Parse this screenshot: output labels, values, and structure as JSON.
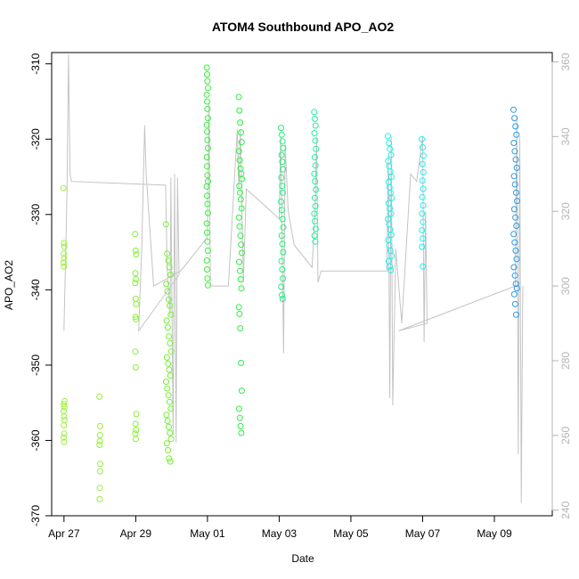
{
  "chart_data": {
    "type": "scatter",
    "title": "ATOM4 Southbound APO_AO2",
    "xlabel": "Date",
    "ylabel": "APO_AO2",
    "xlim": [
      "2016-04-26T15:45",
      "2016-05-10T14:45"
    ],
    "ylim": [
      -370,
      -308.5
    ],
    "y2lim": [
      238.5,
      362.5
    ],
    "x_ticks": [
      {
        "date": "2016-04-27",
        "label": "Apr 27"
      },
      {
        "date": "2016-04-29",
        "label": "Apr 29"
      },
      {
        "date": "2016-05-01",
        "label": "May 01"
      },
      {
        "date": "2016-05-03",
        "label": "May 03"
      },
      {
        "date": "2016-05-05",
        "label": "May 05"
      },
      {
        "date": "2016-05-07",
        "label": "May 07"
      },
      {
        "date": "2016-05-09",
        "label": "May 09"
      }
    ],
    "y_ticks": [
      -370,
      -360,
      -350,
      -340,
      -330,
      -320,
      -310
    ],
    "y2_ticks": [
      240,
      260,
      280,
      300,
      320,
      340,
      360
    ],
    "grid": false,
    "point_clusters": [
      {
        "t": "2016-04-27T00:00",
        "spread_h": 0.6,
        "color": "#9cf03c",
        "y": [
          -326.5,
          -333.8,
          -334.3,
          -335.2,
          -335.8,
          -336.4,
          -336.9,
          -354.8,
          -355.2,
          -355.6,
          -356.1,
          -356.8,
          -357.3,
          -358.0,
          -359.1,
          -359.6,
          -360.2
        ]
      },
      {
        "t": "2016-04-28T00:00",
        "spread_h": 0.6,
        "color": "#94f038",
        "y": [
          -354.2,
          -358.1,
          -359.3,
          -360.1,
          -360.6,
          -363.1,
          -364.1,
          -366.3,
          -367.8
        ]
      },
      {
        "t": "2016-04-29T00:00",
        "spread_h": 0.8,
        "color": "#86f034",
        "y": [
          -332.6,
          -334.8,
          -335.3,
          -337.8,
          -338.6,
          -339.1,
          -341.2,
          -341.9,
          -343.6,
          -343.9,
          -348.2,
          -350.3,
          -356.5,
          -357.8,
          -358.6,
          -359.1,
          -359.8
        ]
      },
      {
        "t": "2016-04-29T22:00",
        "spread_h": 3.5,
        "color": "#72f032",
        "y": [
          -331.3,
          -335.2,
          -336.1,
          -337.0,
          -338.0,
          -339.2,
          -340.2,
          -341.3,
          -342.1,
          -343.3,
          -344.1,
          -345.0,
          -346.2,
          -347.1,
          -348.2,
          -349.0,
          -349.8,
          -350.6,
          -351.4,
          -352.2,
          -353.1,
          -354.0,
          -354.9,
          -355.8,
          -356.6,
          -357.4,
          -358.2,
          -359.0,
          -359.8,
          -360.4,
          -361.3,
          -362.4,
          -362.8
        ]
      },
      {
        "t": "2016-05-01T00:00",
        "spread_h": 1.0,
        "color": "#38f038",
        "y": [
          -310.5,
          -311.4,
          -312.3,
          -313.2,
          -314.1,
          -315.0,
          -316.0,
          -317.2,
          -318.1,
          -319.0,
          -320.1,
          -321.2,
          -322.4,
          -323.6,
          -324.8,
          -325.6,
          -326.3,
          -327.5,
          -328.6,
          -329.8,
          -331.2,
          -332.4,
          -333.6,
          -334.8,
          -336.1,
          -337.3,
          -338.5,
          -339.4
        ]
      },
      {
        "t": "2016-05-01T22:00",
        "spread_h": 2.2,
        "color": "#2cf040",
        "y": [
          -314.4,
          -316.2,
          -317.8,
          -319.1,
          -320.4,
          -321.6,
          -322.8,
          -323.9,
          -324.6,
          -325.3,
          -326.2,
          -327.1,
          -328.0,
          -329.2,
          -330.4,
          -331.6,
          -332.8,
          -334.0,
          -335.1,
          -336.3,
          -337.5,
          -338.6,
          -339.8,
          -342.3,
          -343.2,
          -345.1,
          -349.7,
          -353.4,
          -355.8,
          -357.0,
          -358.1,
          -359.0
        ]
      },
      {
        "t": "2016-05-03T02:00",
        "spread_h": 1.5,
        "color": "#1ff080",
        "y": [
          -318.5,
          -319.4,
          -320.3,
          -321.2,
          -322.1,
          -323.0,
          -324.0,
          -325.1,
          -326.2,
          -327.1,
          -328.3,
          -329.4,
          -330.6,
          -331.7,
          -332.8,
          -333.9,
          -335.0,
          -336.2,
          -337.3,
          -338.5,
          -339.6,
          -340.7,
          -341.2
        ]
      },
      {
        "t": "2016-05-04T00:00",
        "spread_h": 1.2,
        "color": "#1ff0a0",
        "y": [
          -316.4,
          -317.3,
          -318.2,
          -319.2,
          -320.2,
          -321.3,
          -322.4,
          -323.5,
          -324.6,
          -325.6,
          -326.7,
          -327.8,
          -328.9,
          -329.9,
          -330.9,
          -331.9,
          -332.8,
          -333.6
        ]
      },
      {
        "t": "2016-05-06T02:00",
        "spread_h": 2.6,
        "color": "#20f0e8",
        "y": [
          -319.6,
          -320.5,
          -321.3,
          -322.1,
          -322.9,
          -323.6,
          -324.3,
          -325.0,
          -325.7,
          -326.4,
          -327.1,
          -327.8,
          -328.5,
          -329.2,
          -329.9,
          -330.6,
          -331.3,
          -332.0,
          -332.7,
          -333.4,
          -334.1,
          -334.8,
          -335.5,
          -336.2,
          -336.9,
          -337.4
        ]
      },
      {
        "t": "2016-05-07T00:00",
        "spread_h": 1.1,
        "color": "#20ecf0",
        "y": [
          -320.0,
          -321.1,
          -322.2,
          -323.3,
          -324.4,
          -325.5,
          -326.6,
          -327.7,
          -328.8,
          -329.9,
          -331.0,
          -332.1,
          -333.2,
          -334.3,
          -336.9
        ]
      },
      {
        "t": "2016-05-09T14:00",
        "spread_h": 2.4,
        "color": "#2a9ae8",
        "y": [
          -316.1,
          -317.2,
          -318.3,
          -319.4,
          -320.5,
          -321.6,
          -322.7,
          -323.8,
          -324.9,
          -326.0,
          -327.1,
          -328.2,
          -329.3,
          -330.4,
          -331.5,
          -332.6,
          -333.7,
          -334.8,
          -335.9,
          -337.0,
          -338.1,
          -339.2,
          -339.8,
          -340.6,
          -341.9,
          -343.3
        ]
      }
    ],
    "grey_series": {
      "axis": "right",
      "color": "#c4c4c4",
      "path": [
        [
          "2016-04-27T00:00",
          288
        ],
        [
          "2016-04-27T02:00",
          325
        ],
        [
          "2016-04-27T03:00",
          362
        ],
        [
          "2016-04-27T04:00",
          330
        ],
        [
          "2016-04-27T05:00",
          328
        ],
        [
          "2016-04-29T20:00",
          327
        ],
        [
          "2016-04-29T21:00",
          305
        ],
        [
          "2016-04-29T23:00",
          292
        ],
        [
          "2016-04-29T23:30",
          329
        ],
        [
          "2016-04-30T01:00",
          260
        ],
        [
          "2016-04-30T02:00",
          330
        ],
        [
          "2016-04-30T03:00",
          258
        ],
        [
          "2016-04-30T04:00",
          329
        ],
        [
          "2016-04-30T05:00",
          303
        ],
        [
          "2016-04-29T02:00",
          288
        ],
        [
          "2016-04-29T04:00",
          310
        ],
        [
          "2016-04-29T06:00",
          343
        ],
        [
          "2016-04-29T07:00",
          330
        ],
        [
          "2016-04-29T12:00",
          300
        ],
        [
          "2016-04-30T06:00",
          304
        ],
        [
          "2016-05-01T00:00",
          313
        ],
        [
          "2016-05-01T01:00",
          349
        ],
        [
          "2016-05-01T02:00",
          300
        ],
        [
          "2016-05-01T14:00",
          300
        ],
        [
          "2016-05-01T20:00",
          342
        ],
        [
          "2016-05-01T21:00",
          326
        ],
        [
          "2016-05-01T22:00",
          342
        ],
        [
          "2016-05-02T00:00",
          301
        ],
        [
          "2016-05-02T02:00",
          326
        ],
        [
          "2016-05-03T00:00",
          318
        ],
        [
          "2016-05-03T01:00",
          340
        ],
        [
          "2016-05-03T03:00",
          282
        ],
        [
          "2016-05-03T04:00",
          338
        ],
        [
          "2016-05-03T06:00",
          320
        ],
        [
          "2016-05-03T10:00",
          311
        ],
        [
          "2016-05-03T16:00",
          308
        ],
        [
          "2016-05-03T22:00",
          305
        ],
        [
          "2016-05-04T00:00",
          320
        ],
        [
          "2016-05-04T01:00",
          340
        ],
        [
          "2016-05-04T02:00",
          301
        ],
        [
          "2016-05-04T04:00",
          304
        ],
        [
          "2016-05-06T00:00",
          304
        ],
        [
          "2016-05-06T01:00",
          335
        ],
        [
          "2016-05-06T02:00",
          270
        ],
        [
          "2016-05-06T03:00",
          340
        ],
        [
          "2016-05-06T04:00",
          268
        ],
        [
          "2016-05-06T06:00",
          310
        ],
        [
          "2016-05-06T10:00",
          290
        ],
        [
          "2016-05-06T16:00",
          330
        ],
        [
          "2016-05-06T20:00",
          328
        ],
        [
          "2016-05-07T00:00",
          340
        ],
        [
          "2016-05-07T01:00",
          285
        ],
        [
          "2016-05-07T02:00",
          320
        ],
        [
          "2016-05-07T03:00",
          290
        ],
        [
          "2016-05-06T08:00",
          288
        ],
        [
          "2016-05-09T14:00",
          300
        ],
        [
          "2016-05-09T15:00",
          345
        ],
        [
          "2016-05-09T16:00",
          255
        ],
        [
          "2016-05-09T17:00",
          340
        ],
        [
          "2016-05-09T18:00",
          242
        ],
        [
          "2016-05-09T19:00",
          300
        ]
      ]
    }
  }
}
